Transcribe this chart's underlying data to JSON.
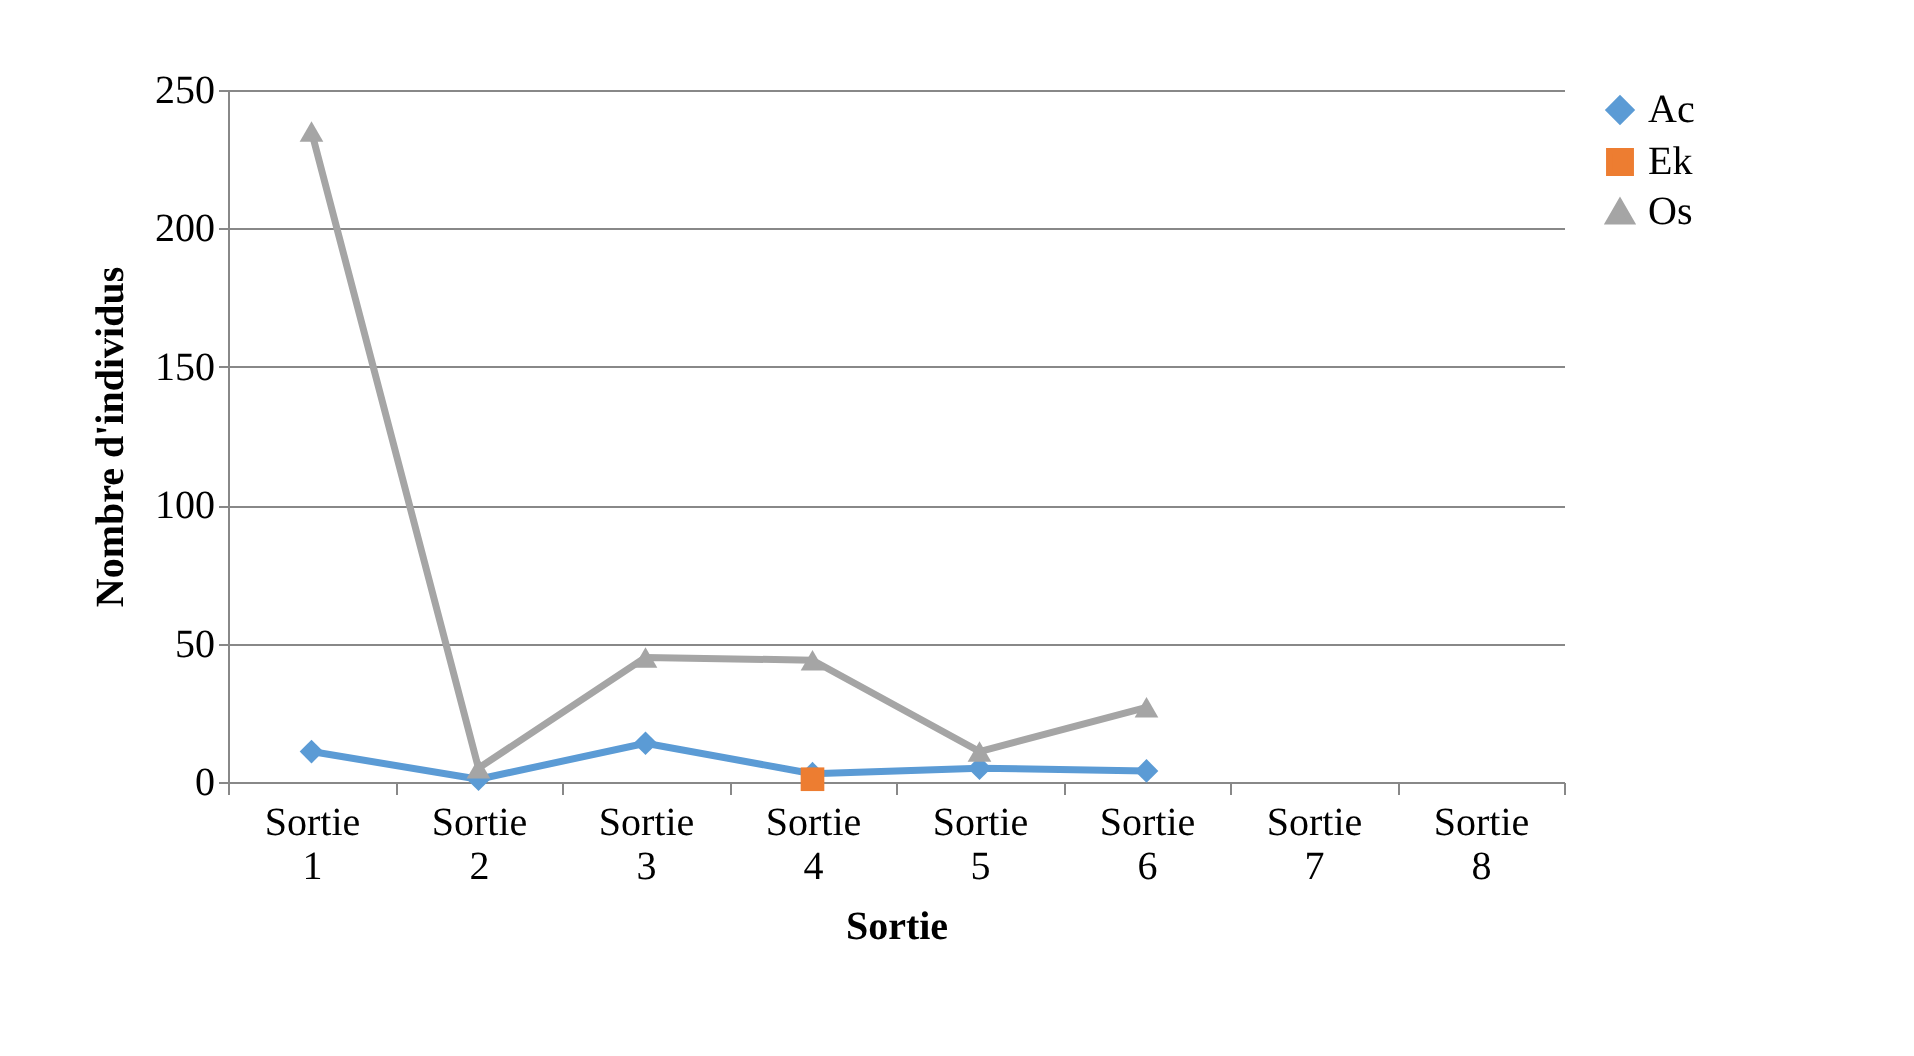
{
  "chart_data": {
    "type": "line",
    "xlabel": "Sortie",
    "ylabel": "Nombre d'individus",
    "categories": [
      "Sortie 1",
      "Sortie 2",
      "Sortie 3",
      "Sortie 4",
      "Sortie 5",
      "Sortie 6",
      "Sortie 7",
      "Sortie 8"
    ],
    "series": [
      {
        "name": "Ac",
        "color": "#5b9bd5",
        "marker": "diamond",
        "values": [
          11,
          1,
          14,
          3,
          5,
          4,
          null,
          null
        ]
      },
      {
        "name": "Ek",
        "color": "#ed7d31",
        "marker": "square",
        "values": [
          null,
          null,
          null,
          1,
          null,
          null,
          null,
          null
        ]
      },
      {
        "name": "Os",
        "color": "#a5a5a5",
        "marker": "triangle",
        "values": [
          235,
          5,
          45,
          44,
          11,
          27,
          null,
          null
        ]
      }
    ],
    "ylim": [
      0,
      250
    ],
    "yticks": [
      0,
      50,
      100,
      150,
      200,
      250
    ],
    "grid": "y",
    "legend": "right"
  }
}
